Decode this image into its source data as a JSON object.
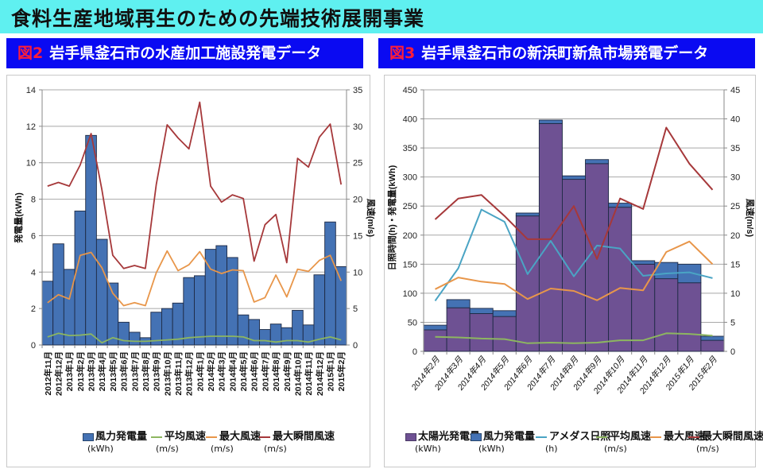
{
  "page": {
    "title": "食料生産地域再生のための先端技術展開事業"
  },
  "colors": {
    "banner": "#5ff0f0",
    "panel_header": "#0a0af2",
    "fig_number": "#ff1d3a",
    "wind_bar": "#4472b4",
    "solar_bar": "#6e5193",
    "avg_wind": "#8db660",
    "max_wind": "#e8964a",
    "max_gust": "#a6383a",
    "sunshine": "#4aa4c4"
  },
  "figures": [
    {
      "number": "図2",
      "title": "岩手県釜石市の水産加工施設発電データ"
    },
    {
      "number": "図3",
      "title": "岩手県釜石市の新浜町新魚市場発電データ"
    }
  ],
  "chart_data": [
    {
      "type": "bar",
      "title": "岩手県釜石市の水産加工施設発電データ",
      "ylabel": "発電量(kWh)",
      "y2label": "風速(m/s)",
      "ylim": [
        0,
        14
      ],
      "y2lim": [
        0,
        35
      ],
      "yticks": [
        "0",
        "2",
        "4",
        "6",
        "8",
        "10",
        "12",
        "14"
      ],
      "y2ticks": [
        "0",
        "5",
        "10",
        "15",
        "20",
        "25",
        "30",
        "35"
      ],
      "grid": true,
      "legend_position": "bottom",
      "categories": [
        "2012年11月",
        "2012年12月",
        "2013年1月",
        "2013年2月",
        "2013年3月",
        "2013年4月",
        "2013年5月",
        "2013年6月",
        "2013年7月",
        "2013年8月",
        "2013年9月",
        "2013年10月",
        "2013年11月",
        "2013年12月",
        "2014年1月",
        "2014年2月",
        "2014年3月",
        "2014年4月",
        "2014年5月",
        "2014年6月",
        "2014年7月",
        "2014年8月",
        "2014年9月",
        "2014年10月",
        "2014年11月",
        "2014年12月",
        "2015年1月",
        "2015年2月"
      ],
      "series": [
        {
          "name": "風力発電量",
          "unit": "(kWh)",
          "kind": "bar",
          "axis": "left",
          "color": "#4472b4",
          "values": [
            3.5,
            5.55,
            4.15,
            7.35,
            11.5,
            5.8,
            3.4,
            1.25,
            0.7,
            0.4,
            1.8,
            2.0,
            2.3,
            3.7,
            3.8,
            5.25,
            5.45,
            4.8,
            1.65,
            1.4,
            0.85,
            1.15,
            0.95,
            1.9,
            1.1,
            3.85,
            6.75,
            4.3
          ]
        },
        {
          "name": "平均風速",
          "unit": "(m/s)",
          "kind": "line",
          "axis": "right",
          "color": "#8db660",
          "values": [
            1.1,
            1.6,
            1.3,
            1.35,
            1.5,
            0.3,
            1.0,
            0.6,
            0.5,
            0.5,
            0.6,
            0.7,
            0.8,
            1.0,
            1.1,
            1.2,
            1.2,
            1.2,
            1.1,
            0.6,
            0.6,
            0.4,
            0.6,
            0.6,
            0.4,
            0.8,
            1.1,
            0.7
          ]
        },
        {
          "name": "最大風速",
          "unit": "(m/s)",
          "kind": "line",
          "axis": "right",
          "color": "#e8964a",
          "values": [
            5.8,
            6.9,
            6.3,
            12.3,
            12.7,
            10.6,
            7.1,
            5.4,
            5.8,
            5.4,
            9.9,
            12.9,
            10.2,
            11.0,
            12.8,
            10.4,
            9.8,
            10.3,
            10.2,
            5.9,
            6.5,
            9.6,
            6.6,
            10.4,
            10.1,
            11.6,
            12.3,
            8.8
          ]
        },
        {
          "name": "最大瞬間風速",
          "unit": "(m/s)",
          "kind": "line",
          "axis": "right",
          "color": "#a6383a",
          "values": [
            21.8,
            22.3,
            21.8,
            24.7,
            29.0,
            21.3,
            12.3,
            10.5,
            10.9,
            10.5,
            22.0,
            30.2,
            28.4,
            26.9,
            33.3,
            21.8,
            19.6,
            20.6,
            20.1,
            11.5,
            16.5,
            17.9,
            11.3,
            25.6,
            24.4,
            28.5,
            30.3,
            22.0
          ]
        }
      ]
    },
    {
      "type": "bar",
      "title": "岩手県釜石市の新浜町新魚市場発電データ",
      "ylabel": "日照時間(h)・発電量(kWh)",
      "y2label": "風速(m/s)",
      "ylim": [
        0,
        450
      ],
      "y2lim": [
        0,
        45
      ],
      "yticks": [
        "0",
        "50",
        "100",
        "150",
        "200",
        "250",
        "300",
        "350",
        "400",
        "450"
      ],
      "y2ticks": [
        "0",
        "5",
        "10",
        "15",
        "20",
        "25",
        "30",
        "35",
        "40",
        "45"
      ],
      "grid": true,
      "legend_position": "bottom",
      "categories": [
        "2014年2月",
        "2014年3月",
        "2014年4月",
        "2014年5月",
        "2014年6月",
        "2014年7月",
        "2014年8月",
        "2014年9月",
        "2014年10月",
        "2014年11月",
        "2014年12月",
        "2015年1月",
        "2015年2月"
      ],
      "series": [
        {
          "name": "太陽光発電量",
          "unit": "(kWh)",
          "kind": "stacked-bar",
          "axis": "left",
          "color": "#6e5193",
          "values": [
            37,
            75,
            65,
            60,
            233,
            392,
            296,
            323,
            248,
            150,
            125,
            118,
            19
          ]
        },
        {
          "name": "風力発電量",
          "unit": "(kWh)",
          "kind": "stacked-bar",
          "axis": "left",
          "color": "#4472b4",
          "values": [
            8,
            14,
            9,
            10,
            5,
            6,
            6,
            7,
            7,
            6,
            28,
            32,
            7
          ]
        },
        {
          "name": "アメダス日照",
          "unit": "(h)",
          "kind": "line",
          "axis": "left",
          "color": "#4aa4c4",
          "values": [
            87,
            143,
            244,
            223,
            133,
            190,
            129,
            182,
            177,
            130,
            134,
            136,
            126
          ]
        },
        {
          "name": "平均風速",
          "unit": "(m/s)",
          "kind": "line",
          "axis": "right",
          "color": "#8db660",
          "values": [
            2.5,
            2.4,
            2.2,
            2.1,
            1.4,
            1.5,
            1.4,
            1.5,
            1.9,
            1.9,
            3.1,
            3.0,
            2.7
          ]
        },
        {
          "name": "最大風速",
          "unit": "",
          "kind": "line",
          "axis": "right",
          "color": "#e8964a",
          "values": [
            10.7,
            12.7,
            12.0,
            11.6,
            9.0,
            10.8,
            10.4,
            8.8,
            10.9,
            10.5,
            17.1,
            18.9,
            15.0
          ]
        },
        {
          "name": "最大瞬間風速",
          "unit": "(m/s)",
          "kind": "line",
          "axis": "right",
          "color": "#a6383a",
          "values": [
            22.7,
            26.3,
            26.9,
            23.3,
            19.3,
            19.3,
            25.0,
            15.9,
            26.3,
            24.5,
            38.5,
            32.3,
            27.8
          ]
        }
      ]
    }
  ]
}
